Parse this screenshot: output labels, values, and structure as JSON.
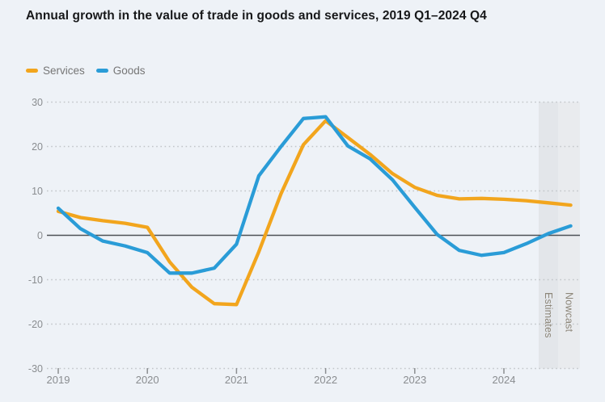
{
  "title": "Annual growth in the value of trade in goods and services, 2019 Q1–2024 Q4",
  "legend": [
    {
      "label": "Services",
      "color": "#f2a51d"
    },
    {
      "label": "Goods",
      "color": "#2a9cd7"
    }
  ],
  "bands": [
    {
      "label": "Estimates",
      "fill": "#e3e6ea"
    },
    {
      "label": "Nowcast",
      "fill": "#e9ebee"
    }
  ],
  "colors": {
    "background": "#eef2f7",
    "zero_line": "#4d5156",
    "gridline": "#c2c5c9",
    "axis_text": "#8a8d90"
  },
  "chart_data": {
    "type": "line",
    "title": "Annual growth in the value of trade in goods and services, 2019 Q1–2024 Q4",
    "x_unit": "quarter",
    "categories": [
      "2019 Q1",
      "2019 Q2",
      "2019 Q3",
      "2019 Q4",
      "2020 Q1",
      "2020 Q2",
      "2020 Q3",
      "2020 Q4",
      "2021 Q1",
      "2021 Q2",
      "2021 Q3",
      "2021 Q4",
      "2022 Q1",
      "2022 Q2",
      "2022 Q3",
      "2022 Q4",
      "2023 Q1",
      "2023 Q2",
      "2023 Q3",
      "2023 Q4",
      "2024 Q1",
      "2024 Q2",
      "2024 Q3",
      "2024 Q4"
    ],
    "series": [
      {
        "name": "Services",
        "color": "#f2a51d",
        "values": [
          5.4,
          4.0,
          3.3,
          2.7,
          1.8,
          -6.0,
          -11.7,
          -15.4,
          -15.6,
          -3.7,
          9.4,
          20.4,
          25.8,
          22.0,
          18.2,
          13.9,
          10.8,
          9.0,
          8.2,
          8.3,
          8.1,
          7.8,
          7.3,
          6.8
        ]
      },
      {
        "name": "Goods",
        "color": "#2a9cd7",
        "values": [
          6.1,
          1.5,
          -1.3,
          -2.4,
          -3.9,
          -8.5,
          -8.5,
          -7.4,
          -2.0,
          13.4,
          20.0,
          26.3,
          26.7,
          20.1,
          17.2,
          12.5,
          6.3,
          0.2,
          -3.4,
          -4.5,
          -3.9,
          -1.9,
          0.4,
          2.1
        ]
      }
    ],
    "yticks": [
      30,
      20,
      10,
      0,
      -10,
      -20,
      -30
    ],
    "xticks": [
      "2019",
      "2020",
      "2021",
      "2022",
      "2023",
      "2024"
    ],
    "ylim": [
      -30,
      30
    ],
    "grid": "dotted horizontal, solid zero line",
    "legend_position": "top-left",
    "annotations": [
      "Estimates",
      "Nowcast"
    ]
  }
}
